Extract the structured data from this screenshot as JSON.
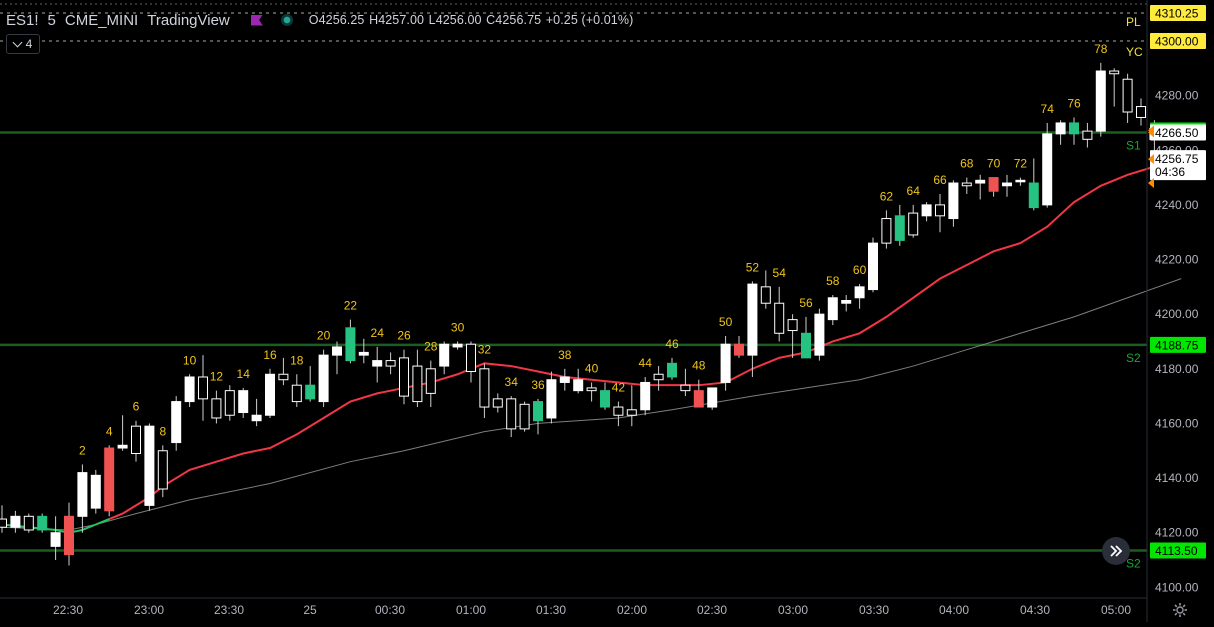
{
  "header": {
    "symbol": "ES1!",
    "interval": "5",
    "exchange": "CME_MINI",
    "source": "TradingView",
    "ohlc": {
      "o": "O4256.25",
      "h": "H4257.00",
      "l": "L4256.00",
      "c": "C4256.75",
      "chg": "+0.25 (+0.01%)"
    },
    "indicator_count": "4"
  },
  "colors": {
    "background": "#000000",
    "up_candle": "#ffffff",
    "down_candle": "#000000",
    "green_candle": "#26c281",
    "red_candle": "#f05252",
    "ema_fast": "#f23645",
    "sma_slow": "#9e9e9e",
    "bar_count_text": "#f0c419",
    "level_green": "#00e600",
    "level_yellow": "#ffeb3b"
  },
  "chart_data": {
    "type": "candlestick",
    "y_axis": {
      "min": 4095,
      "max": 4315,
      "ticks": [
        4100,
        4120,
        4140,
        4160,
        4180,
        4200,
        4220,
        4240,
        4260,
        4280
      ]
    },
    "x_axis": {
      "labels": [
        "22:30",
        "23:00",
        "23:30",
        "25",
        "00:30",
        "01:00",
        "01:30",
        "02:00",
        "02:30",
        "03:00",
        "03:30",
        "04:00",
        "04:30",
        "05:00"
      ]
    },
    "candles": [
      {
        "o": 4125,
        "h": 4130,
        "l": 4120,
        "c": 4122
      },
      {
        "o": 4122,
        "h": 4128,
        "l": 4120,
        "c": 4126
      },
      {
        "o": 4126,
        "h": 4127,
        "l": 4120,
        "c": 4121
      },
      {
        "o": 4126,
        "h": 4127,
        "l": 4120,
        "c": 4121
      },
      {
        "o": 4115,
        "h": 4126,
        "l": 4110,
        "c": 4120
      },
      {
        "o": 4126,
        "h": 4131,
        "l": 4108,
        "c": 4112
      },
      {
        "o": 4126,
        "h": 4145,
        "l": 4120,
        "c": 4142
      },
      {
        "o": 4129,
        "h": 4143,
        "l": 4127,
        "c": 4141
      },
      {
        "o": 4151,
        "h": 4152,
        "l": 4126,
        "c": 4128
      },
      {
        "o": 4151,
        "h": 4163,
        "l": 4150,
        "c": 4152
      },
      {
        "o": 4159,
        "h": 4161,
        "l": 4146,
        "c": 4149
      },
      {
        "o": 4130,
        "h": 4160,
        "l": 4128,
        "c": 4159
      },
      {
        "o": 4150,
        "h": 4152,
        "l": 4133,
        "c": 4136
      },
      {
        "o": 4153,
        "h": 4170,
        "l": 4150,
        "c": 4168
      },
      {
        "o": 4168,
        "h": 4178,
        "l": 4166,
        "c": 4177
      },
      {
        "o": 4177,
        "h": 4185,
        "l": 4161,
        "c": 4169
      },
      {
        "o": 4169,
        "h": 4172,
        "l": 4160,
        "c": 4162
      },
      {
        "o": 4172,
        "h": 4174,
        "l": 4161,
        "c": 4163
      },
      {
        "o": 4164,
        "h": 4173,
        "l": 4162,
        "c": 4172
      },
      {
        "o": 4161,
        "h": 4169,
        "l": 4159,
        "c": 4163
      },
      {
        "o": 4163,
        "h": 4180,
        "l": 4162,
        "c": 4178
      },
      {
        "o": 4178,
        "h": 4184,
        "l": 4174,
        "c": 4176
      },
      {
        "o": 4174,
        "h": 4178,
        "l": 4166,
        "c": 4168
      },
      {
        "o": 4174,
        "h": 4181,
        "l": 4168,
        "c": 4169
      },
      {
        "o": 4168,
        "h": 4187,
        "l": 4166,
        "c": 4185
      },
      {
        "o": 4185,
        "h": 4190,
        "l": 4178,
        "c": 4188
      },
      {
        "o": 4195,
        "h": 4198,
        "l": 4182,
        "c": 4183
      },
      {
        "o": 4185,
        "h": 4191,
        "l": 4182,
        "c": 4186
      },
      {
        "o": 4181,
        "h": 4188,
        "l": 4175,
        "c": 4183
      },
      {
        "o": 4183,
        "h": 4186,
        "l": 4178,
        "c": 4181
      },
      {
        "o": 4184,
        "h": 4187,
        "l": 4167,
        "c": 4170
      },
      {
        "o": 4181,
        "h": 4187,
        "l": 4166,
        "c": 4168
      },
      {
        "o": 4180,
        "h": 4183,
        "l": 4166,
        "c": 4171
      },
      {
        "o": 4181,
        "h": 4190,
        "l": 4178,
        "c": 4189
      },
      {
        "o": 4188,
        "h": 4190,
        "l": 4187,
        "c": 4189
      },
      {
        "o": 4189,
        "h": 4190,
        "l": 4175,
        "c": 4179
      },
      {
        "o": 4180,
        "h": 4182,
        "l": 4162,
        "c": 4166
      },
      {
        "o": 4169,
        "h": 4171,
        "l": 4164,
        "c": 4166
      },
      {
        "o": 4169,
        "h": 4170,
        "l": 4155,
        "c": 4158
      },
      {
        "o": 4167,
        "h": 4168,
        "l": 4157,
        "c": 4158
      },
      {
        "o": 4168,
        "h": 4169,
        "l": 4156,
        "c": 4161
      },
      {
        "o": 4162,
        "h": 4179,
        "l": 4160,
        "c": 4176
      },
      {
        "o": 4175,
        "h": 4180,
        "l": 4172,
        "c": 4177
      },
      {
        "o": 4172,
        "h": 4180,
        "l": 4171,
        "c": 4176
      },
      {
        "o": 4173,
        "h": 4175,
        "l": 4168,
        "c": 4172
      },
      {
        "o": 4172,
        "h": 4175,
        "l": 4165,
        "c": 4166
      },
      {
        "o": 4166,
        "h": 4168,
        "l": 4159,
        "c": 4163
      },
      {
        "o": 4165,
        "h": 4174,
        "l": 4159,
        "c": 4163
      },
      {
        "o": 4165,
        "h": 4177,
        "l": 4163,
        "c": 4175
      },
      {
        "o": 4178,
        "h": 4181,
        "l": 4172,
        "c": 4176
      },
      {
        "o": 4182,
        "h": 4184,
        "l": 4176,
        "c": 4177
      },
      {
        "o": 4174,
        "h": 4180,
        "l": 4170,
        "c": 4172
      },
      {
        "o": 4172,
        "h": 4176,
        "l": 4166,
        "c": 4166
      },
      {
        "o": 4166,
        "h": 4173,
        "l": 4165,
        "c": 4173
      },
      {
        "o": 4175,
        "h": 4192,
        "l": 4172,
        "c": 4189
      },
      {
        "o": 4189,
        "h": 4192,
        "l": 4184,
        "c": 4185
      },
      {
        "o": 4185,
        "h": 4212,
        "l": 4177,
        "c": 4211
      },
      {
        "o": 4210,
        "h": 4216,
        "l": 4202,
        "c": 4204
      },
      {
        "o": 4204,
        "h": 4210,
        "l": 4190,
        "c": 4193
      },
      {
        "o": 4198,
        "h": 4200,
        "l": 4184,
        "c": 4194
      },
      {
        "o": 4193,
        "h": 4199,
        "l": 4184,
        "c": 4184
      },
      {
        "o": 4185,
        "h": 4202,
        "l": 4183,
        "c": 4200
      },
      {
        "o": 4198,
        "h": 4207,
        "l": 4196,
        "c": 4206
      },
      {
        "o": 4204,
        "h": 4207,
        "l": 4201,
        "c": 4205
      },
      {
        "o": 4206,
        "h": 4211,
        "l": 4202,
        "c": 4210
      },
      {
        "o": 4209,
        "h": 4228,
        "l": 4208,
        "c": 4226
      },
      {
        "o": 4235,
        "h": 4238,
        "l": 4224,
        "c": 4226
      },
      {
        "o": 4227,
        "h": 4240,
        "l": 4225,
        "c": 4236
      },
      {
        "o": 4237,
        "h": 4240,
        "l": 4228,
        "c": 4229
      },
      {
        "o": 4236,
        "h": 4241,
        "l": 4234,
        "c": 4240
      },
      {
        "o": 4240,
        "h": 4244,
        "l": 4230,
        "c": 4236
      },
      {
        "o": 4235,
        "h": 4249,
        "l": 4232,
        "c": 4248
      },
      {
        "o": 4248,
        "h": 4250,
        "l": 4244,
        "c": 4247
      },
      {
        "o": 4248,
        "h": 4251,
        "l": 4242,
        "c": 4249
      },
      {
        "o": 4250,
        "h": 4250,
        "l": 4243,
        "c": 4245
      },
      {
        "o": 4247,
        "h": 4251,
        "l": 4243,
        "c": 4248
      },
      {
        "o": 4249,
        "h": 4250,
        "l": 4247,
        "c": 4249
      },
      {
        "o": 4239,
        "h": 4257,
        "l": 4238,
        "c": 4248
      },
      {
        "o": 4240,
        "h": 4270,
        "l": 4239,
        "c": 4266
      },
      {
        "o": 4266,
        "h": 4271,
        "l": 4262,
        "c": 4270
      },
      {
        "o": 4270,
        "h": 4272,
        "l": 4262,
        "c": 4266
      },
      {
        "o": 4267,
        "h": 4270,
        "l": 4261,
        "c": 4264
      },
      {
        "o": 4267,
        "h": 4292,
        "l": 4265,
        "c": 4289
      },
      {
        "o": 4289,
        "h": 4290,
        "l": 4276,
        "c": 4288
      },
      {
        "o": 4286,
        "h": 4288,
        "l": 4270,
        "c": 4274
      },
      {
        "o": 4276,
        "h": 4279,
        "l": 4269,
        "c": 4272
      },
      {
        "o": 4264,
        "h": 4271,
        "l": 4256,
        "c": 4268
      }
    ],
    "candle_fills": {
      "3": "green",
      "5": "red",
      "8": "red",
      "23": "green",
      "26": "green",
      "40": "green",
      "45": "green",
      "50": "green",
      "52": "red",
      "55": "red",
      "60": "green",
      "67": "green",
      "74": "red",
      "77": "green",
      "80": "green"
    },
    "bar_numbers": [
      {
        "i": 6,
        "label": "2"
      },
      {
        "i": 8,
        "label": "4"
      },
      {
        "i": 10,
        "label": "6"
      },
      {
        "i": 12,
        "label": "8"
      },
      {
        "i": 14,
        "label": "10"
      },
      {
        "i": 16,
        "label": "12"
      },
      {
        "i": 18,
        "label": "14"
      },
      {
        "i": 20,
        "label": "16"
      },
      {
        "i": 22,
        "label": "18"
      },
      {
        "i": 24,
        "label": "20"
      },
      {
        "i": 26,
        "label": "22"
      },
      {
        "i": 28,
        "label": "24"
      },
      {
        "i": 30,
        "label": "26"
      },
      {
        "i": 32,
        "label": "28"
      },
      {
        "i": 34,
        "label": "30"
      },
      {
        "i": 36,
        "label": "32"
      },
      {
        "i": 38,
        "label": "34"
      },
      {
        "i": 40,
        "label": "36"
      },
      {
        "i": 42,
        "label": "38"
      },
      {
        "i": 44,
        "label": "40"
      },
      {
        "i": 46,
        "label": "42"
      },
      {
        "i": 48,
        "label": "44"
      },
      {
        "i": 50,
        "label": "46"
      },
      {
        "i": 52,
        "label": "48"
      },
      {
        "i": 54,
        "label": "50"
      },
      {
        "i": 56,
        "label": "52"
      },
      {
        "i": 58,
        "label": "54"
      },
      {
        "i": 60,
        "label": "56"
      },
      {
        "i": 62,
        "label": "58"
      },
      {
        "i": 64,
        "label": "60"
      },
      {
        "i": 66,
        "label": "62"
      },
      {
        "i": 68,
        "label": "64"
      },
      {
        "i": 70,
        "label": "66"
      },
      {
        "i": 72,
        "label": "68"
      },
      {
        "i": 74,
        "label": "70"
      },
      {
        "i": 76,
        "label": "72"
      },
      {
        "i": 78,
        "label": "74"
      },
      {
        "i": 80,
        "label": "76"
      },
      {
        "i": 82,
        "label": "78"
      }
    ],
    "ema_fast": [
      [
        0,
        4123
      ],
      [
        4,
        4121
      ],
      [
        5,
        4120
      ],
      [
        6,
        4121
      ],
      [
        7,
        4123
      ],
      [
        8,
        4125
      ],
      [
        9,
        4127
      ],
      [
        10,
        4130
      ],
      [
        11,
        4133
      ],
      [
        12,
        4137
      ],
      [
        14,
        4143
      ],
      [
        16,
        4146
      ],
      [
        18,
        4149
      ],
      [
        20,
        4151
      ],
      [
        22,
        4156
      ],
      [
        24,
        4162
      ],
      [
        26,
        4168
      ],
      [
        28,
        4171
      ],
      [
        30,
        4173
      ],
      [
        32,
        4175
      ],
      [
        34,
        4178
      ],
      [
        36,
        4182
      ],
      [
        38,
        4181
      ],
      [
        40,
        4179
      ],
      [
        42,
        4177
      ],
      [
        44,
        4176
      ],
      [
        46,
        4175
      ],
      [
        48,
        4174
      ],
      [
        50,
        4174
      ],
      [
        52,
        4174
      ],
      [
        54,
        4175
      ],
      [
        56,
        4180
      ],
      [
        58,
        4184
      ],
      [
        60,
        4186
      ],
      [
        62,
        4190
      ],
      [
        64,
        4193
      ],
      [
        66,
        4199
      ],
      [
        68,
        4206
      ],
      [
        70,
        4213
      ],
      [
        72,
        4218
      ],
      [
        74,
        4223
      ],
      [
        76,
        4226
      ],
      [
        78,
        4232
      ],
      [
        80,
        4241
      ],
      [
        82,
        4247
      ],
      [
        84,
        4251
      ],
      [
        86,
        4254
      ]
    ],
    "sma_slow": [
      [
        0,
        4122
      ],
      [
        5,
        4121
      ],
      [
        7,
        4123
      ],
      [
        10,
        4127
      ],
      [
        14,
        4132
      ],
      [
        20,
        4138
      ],
      [
        26,
        4146
      ],
      [
        30,
        4150
      ],
      [
        36,
        4157
      ],
      [
        40,
        4160
      ],
      [
        46,
        4162
      ],
      [
        50,
        4165
      ],
      [
        56,
        4170
      ],
      [
        60,
        4173
      ],
      [
        64,
        4176
      ],
      [
        68,
        4181
      ],
      [
        72,
        4187
      ],
      [
        76,
        4193
      ],
      [
        80,
        4199
      ],
      [
        84,
        4206
      ],
      [
        88,
        4213
      ]
    ],
    "levels": [
      {
        "price": 4310.25,
        "label": "",
        "badge": "4310.25",
        "style": "dash",
        "color": "#e0e0e0"
      },
      {
        "price": 4300.0,
        "label": "",
        "badge": "4300.00",
        "style": "dash",
        "color": "#e0e0e0"
      },
      {
        "price": 4267.25,
        "label": "",
        "badge": "4267.25",
        "style": "none",
        "color": "#00e600"
      },
      {
        "price": 4266.5,
        "label": "S1",
        "badge": "4266.50",
        "style": "solid",
        "color": "#1b5e20"
      },
      {
        "price": 4188.75,
        "label": "S2",
        "badge": "4188.75",
        "style": "solid",
        "color": "#1b5e20"
      },
      {
        "price": 4113.5,
        "label": "S2",
        "badge": "4113.50",
        "style": "solid",
        "color": "#1b5e20"
      }
    ],
    "side_labels": [
      {
        "price": 4307,
        "text": "PL"
      },
      {
        "price": 4296,
        "text": "YC"
      }
    ],
    "last_price": {
      "price": "4256.75",
      "countdown": "04:36"
    }
  }
}
